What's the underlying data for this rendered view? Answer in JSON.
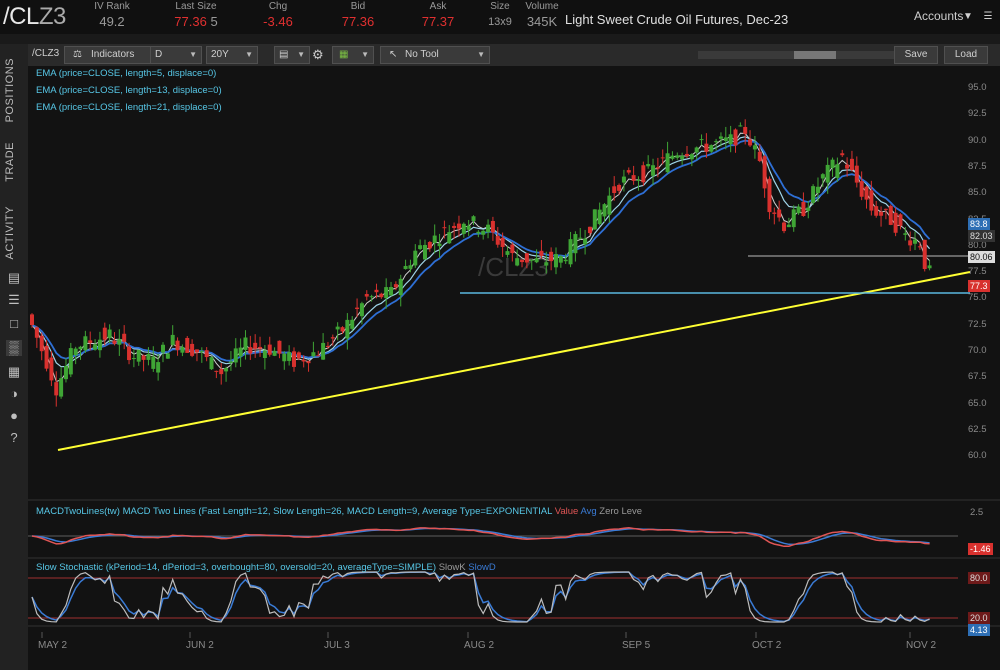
{
  "quote": {
    "symbol_prefix": "/CL",
    "symbol_suffix": "Z3",
    "iv_rank_label": "IV Rank",
    "iv_rank": "49.2",
    "last_size_label": "Last Size",
    "last": "77.36",
    "size_val": "5",
    "chg_label": "Chg",
    "chg": "-3.46",
    "bid_label": "Bid",
    "bid": "77.36",
    "ask_label": "Ask",
    "ask": "77.37",
    "size_label": "Size",
    "size": "13x9",
    "volume_label": "Volume",
    "volume": "345K",
    "description": "Light Sweet Crude Oil Futures, Dec-23",
    "accounts_label": "Accounts"
  },
  "sidebar": {
    "tabs": [
      "POSITIONS",
      "TRADE",
      "ACTIVITY"
    ]
  },
  "toolbar": {
    "symbol": "/CLZ3",
    "indicators": "Indicators",
    "aggregation": "D",
    "period": "20Y",
    "tool": "No Tool",
    "save": "Save",
    "load": "Load"
  },
  "studies": {
    "ema1": "EMA (price=CLOSE, length=5, displace=0)",
    "ema2": "EMA (price=CLOSE, length=13, displace=0)",
    "ema3": "EMA (price=CLOSE, length=21, displace=0)",
    "macd": "MACDTwoLines(tw) MACD Two Lines (Fast Length=12, Slow Length=26, MACD Length=9, Average Type=EXPONENTIAL",
    "macd_value": "Value",
    "macd_avg": "Avg",
    "macd_zero": "Zero Leve",
    "stoch": "Slow Stochastic (kPeriod=14, dPeriod=3, overbought=80, oversold=20, averageType=SIMPLE)",
    "stoch_k": "SlowK",
    "stoch_d": "SlowD",
    "watermark": "/CLZ3"
  },
  "price_axis": [
    "95.0",
    "92.5",
    "90.0",
    "87.5",
    "85.0",
    "82.5",
    "80.0",
    "77.5",
    "75.0",
    "72.5",
    "70.0",
    "67.5",
    "65.0",
    "62.5",
    "60.0"
  ],
  "badges": {
    "ema_top": "83.8",
    "ema_mid": "82.03",
    "level": "80.06",
    "last": "77.3",
    "macd_top": "2.5",
    "macd_last": "-1.46",
    "stoch_ob": "80.0",
    "stoch_os": "20.0",
    "stoch_last": "4.13"
  },
  "dates": [
    "MAY 2",
    "JUN 2",
    "JUL 3",
    "AUG 2",
    "SEP 5",
    "OCT 2",
    "NOV 2"
  ],
  "colors": {
    "up": "#3fa535",
    "down": "#d8312e",
    "ema": "#57c7e6",
    "trend": "#ffff33"
  }
}
